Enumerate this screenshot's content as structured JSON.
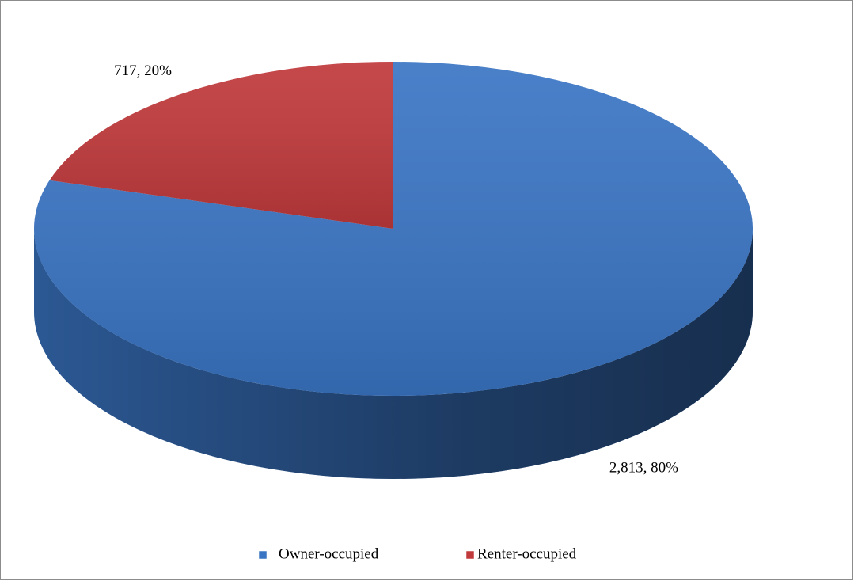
{
  "chart_data": {
    "type": "pie3d",
    "categories": [
      "Owner-occupied",
      "Renter-occupied"
    ],
    "values": [
      2813,
      717
    ],
    "value_labels": [
      "2,813, 80%",
      "717, 20%"
    ],
    "colors": [
      "#3a75c4",
      "#c0393b"
    ],
    "legend": "bottom"
  }
}
